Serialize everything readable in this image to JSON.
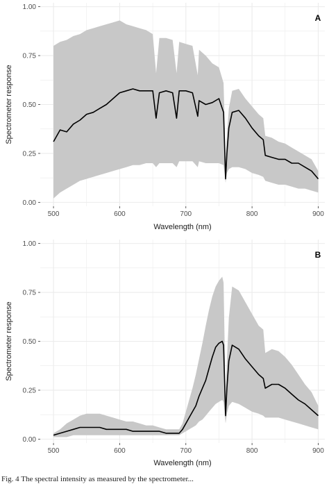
{
  "colors": {
    "panel_bg": "#ffffff",
    "grid": "#ebebeb",
    "ribbon": "#c8c8c8",
    "line": "#000000"
  },
  "caption": "Fig. 4  The spectral intensity as measured by the spectrometer...",
  "chart_data": [
    {
      "type": "area",
      "panel_label": "A",
      "xlabel": "Wavelength (nm)",
      "ylabel": "Spectrometer response",
      "xlim": [
        480,
        910
      ],
      "ylim": [
        -0.02,
        1.02
      ],
      "x_ticks": [
        "500",
        "600",
        "700",
        "800",
        "900"
      ],
      "y_ticks": [
        "0.00",
        "0.25",
        "0.50",
        "0.75",
        "1.00"
      ],
      "grid": true,
      "legend": "none",
      "x": [
        500,
        510,
        520,
        530,
        540,
        550,
        560,
        570,
        580,
        590,
        600,
        610,
        620,
        630,
        640,
        650,
        655,
        660,
        670,
        680,
        686,
        690,
        700,
        710,
        718,
        720,
        730,
        740,
        750,
        757,
        760,
        762,
        765,
        770,
        780,
        790,
        800,
        810,
        817,
        820,
        830,
        840,
        850,
        860,
        870,
        880,
        890,
        900
      ],
      "series": [
        {
          "name": "mean",
          "values": [
            0.31,
            0.37,
            0.36,
            0.4,
            0.42,
            0.45,
            0.46,
            0.48,
            0.5,
            0.53,
            0.56,
            0.57,
            0.58,
            0.57,
            0.57,
            0.57,
            0.43,
            0.56,
            0.57,
            0.56,
            0.43,
            0.57,
            0.57,
            0.56,
            0.44,
            0.52,
            0.5,
            0.51,
            0.53,
            0.46,
            0.12,
            0.25,
            0.38,
            0.46,
            0.47,
            0.43,
            0.38,
            0.34,
            0.32,
            0.24,
            0.23,
            0.22,
            0.22,
            0.2,
            0.2,
            0.18,
            0.16,
            0.12
          ]
        },
        {
          "name": "upper",
          "values": [
            0.8,
            0.82,
            0.83,
            0.85,
            0.86,
            0.88,
            0.89,
            0.9,
            0.91,
            0.92,
            0.93,
            0.91,
            0.9,
            0.89,
            0.88,
            0.86,
            0.66,
            0.84,
            0.84,
            0.83,
            0.66,
            0.82,
            0.81,
            0.8,
            0.65,
            0.78,
            0.75,
            0.71,
            0.69,
            0.61,
            0.22,
            0.34,
            0.48,
            0.57,
            0.58,
            0.53,
            0.49,
            0.45,
            0.43,
            0.34,
            0.33,
            0.31,
            0.3,
            0.28,
            0.26,
            0.24,
            0.22,
            0.16
          ]
        },
        {
          "name": "lower",
          "values": [
            0.02,
            0.05,
            0.07,
            0.09,
            0.11,
            0.12,
            0.13,
            0.14,
            0.15,
            0.16,
            0.17,
            0.18,
            0.19,
            0.19,
            0.2,
            0.2,
            0.18,
            0.2,
            0.2,
            0.2,
            0.18,
            0.21,
            0.21,
            0.21,
            0.18,
            0.21,
            0.2,
            0.2,
            0.2,
            0.19,
            0.1,
            0.15,
            0.17,
            0.18,
            0.18,
            0.17,
            0.15,
            0.14,
            0.13,
            0.11,
            0.1,
            0.09,
            0.09,
            0.08,
            0.07,
            0.07,
            0.06,
            0.05
          ]
        }
      ]
    },
    {
      "type": "area",
      "panel_label": "B",
      "xlabel": "Wavelength (nm)",
      "ylabel": "Spectrometer response",
      "xlim": [
        480,
        910
      ],
      "ylim": [
        -0.02,
        1.02
      ],
      "x_ticks": [
        "500",
        "600",
        "700",
        "800",
        "900"
      ],
      "y_ticks": [
        "0.00",
        "0.25",
        "0.50",
        "0.75",
        "1.00"
      ],
      "grid": true,
      "legend": "none",
      "x": [
        500,
        510,
        520,
        530,
        540,
        550,
        560,
        570,
        580,
        590,
        600,
        610,
        620,
        630,
        640,
        650,
        660,
        670,
        680,
        690,
        695,
        700,
        705,
        710,
        715,
        720,
        725,
        730,
        735,
        740,
        745,
        750,
        755,
        757,
        760,
        762,
        765,
        770,
        780,
        790,
        800,
        810,
        817,
        820,
        830,
        840,
        850,
        860,
        870,
        880,
        890,
        900
      ],
      "series": [
        {
          "name": "mean",
          "values": [
            0.02,
            0.03,
            0.04,
            0.05,
            0.06,
            0.06,
            0.06,
            0.06,
            0.05,
            0.05,
            0.05,
            0.05,
            0.04,
            0.04,
            0.04,
            0.04,
            0.04,
            0.03,
            0.03,
            0.03,
            0.05,
            0.08,
            0.11,
            0.14,
            0.17,
            0.22,
            0.26,
            0.3,
            0.36,
            0.42,
            0.47,
            0.49,
            0.5,
            0.48,
            0.12,
            0.26,
            0.4,
            0.48,
            0.46,
            0.41,
            0.37,
            0.33,
            0.31,
            0.26,
            0.28,
            0.28,
            0.26,
            0.23,
            0.2,
            0.18,
            0.15,
            0.12
          ]
        },
        {
          "name": "upper",
          "values": [
            0.03,
            0.05,
            0.08,
            0.1,
            0.12,
            0.13,
            0.13,
            0.13,
            0.12,
            0.11,
            0.1,
            0.09,
            0.09,
            0.08,
            0.07,
            0.07,
            0.06,
            0.05,
            0.05,
            0.05,
            0.08,
            0.14,
            0.2,
            0.26,
            0.33,
            0.41,
            0.49,
            0.58,
            0.66,
            0.73,
            0.78,
            0.81,
            0.83,
            0.8,
            0.22,
            0.4,
            0.62,
            0.78,
            0.76,
            0.7,
            0.64,
            0.58,
            0.56,
            0.44,
            0.46,
            0.45,
            0.42,
            0.38,
            0.33,
            0.28,
            0.24,
            0.17
          ]
        },
        {
          "name": "lower",
          "values": [
            0.01,
            0.01,
            0.01,
            0.02,
            0.02,
            0.02,
            0.02,
            0.02,
            0.02,
            0.02,
            0.02,
            0.02,
            0.02,
            0.02,
            0.02,
            0.02,
            0.02,
            0.02,
            0.02,
            0.02,
            0.03,
            0.04,
            0.05,
            0.06,
            0.07,
            0.09,
            0.1,
            0.12,
            0.14,
            0.16,
            0.18,
            0.19,
            0.2,
            0.19,
            0.08,
            0.13,
            0.17,
            0.19,
            0.18,
            0.16,
            0.14,
            0.13,
            0.12,
            0.11,
            0.11,
            0.11,
            0.1,
            0.09,
            0.08,
            0.07,
            0.06,
            0.05
          ]
        }
      ]
    }
  ]
}
